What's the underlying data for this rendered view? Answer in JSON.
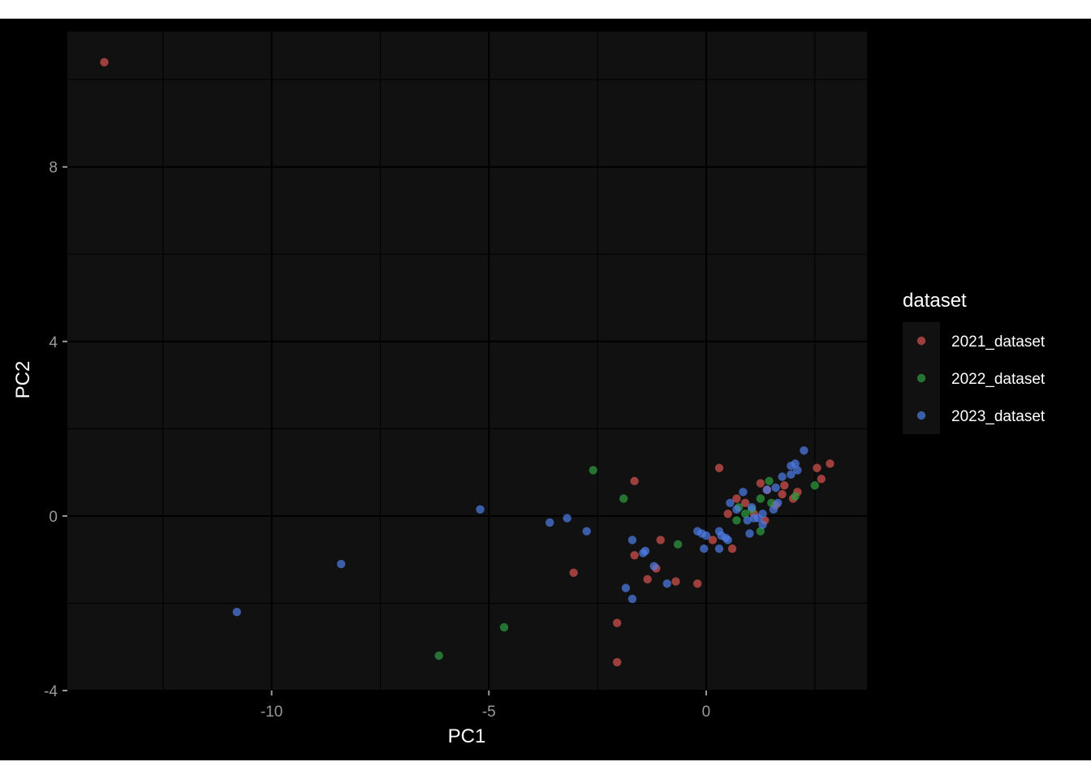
{
  "chart_data": {
    "type": "scatter",
    "xlabel": "PC1",
    "ylabel": "PC2",
    "xlim": [
      -14.7,
      3.7
    ],
    "ylim": [
      -4.0,
      11.1
    ],
    "xticks": [
      -10,
      -5,
      0
    ],
    "xtick_labels": [
      "-10",
      "-5",
      "0"
    ],
    "yticks": [
      -4,
      0,
      4,
      8
    ],
    "ytick_labels": [
      "-4",
      "0",
      "4",
      "8"
    ],
    "grid": true,
    "legend_position": "right",
    "legend_title": "dataset",
    "background": "#111111",
    "grid_color": "#000000",
    "series": [
      {
        "name": "2021_dataset",
        "color": "#d9534f",
        "points": [
          [
            -13.85,
            10.4
          ],
          [
            -1.65,
            0.8
          ],
          [
            0.3,
            1.1
          ],
          [
            2.55,
            1.1
          ],
          [
            2.85,
            1.2
          ],
          [
            2.65,
            0.85
          ],
          [
            1.25,
            0.75
          ],
          [
            1.4,
            0.6
          ],
          [
            1.8,
            0.7
          ],
          [
            1.75,
            0.5
          ],
          [
            2.0,
            0.4
          ],
          [
            0.9,
            0.3
          ],
          [
            0.7,
            0.4
          ],
          [
            0.5,
            0.05
          ],
          [
            0.15,
            -0.55
          ],
          [
            0.6,
            -0.75
          ],
          [
            -1.05,
            -0.55
          ],
          [
            -1.65,
            -0.9
          ],
          [
            -1.15,
            -1.2
          ],
          [
            -1.35,
            -1.45
          ],
          [
            -0.7,
            -1.5
          ],
          [
            -0.2,
            -1.55
          ],
          [
            -3.05,
            -1.3
          ],
          [
            -2.05,
            -2.45
          ],
          [
            -2.05,
            -3.35
          ],
          [
            1.6,
            0.25
          ],
          [
            2.1,
            0.55
          ],
          [
            1.1,
            0.05
          ],
          [
            1.35,
            -0.1
          ]
        ]
      },
      {
        "name": "2022_dataset",
        "color": "#2e9e3e",
        "points": [
          [
            -2.6,
            1.05
          ],
          [
            -1.9,
            0.4
          ],
          [
            -0.65,
            -0.65
          ],
          [
            -4.65,
            -2.55
          ],
          [
            -6.15,
            -3.2
          ],
          [
            1.45,
            0.8
          ],
          [
            1.25,
            0.4
          ],
          [
            2.5,
            0.7
          ],
          [
            2.05,
            0.45
          ],
          [
            0.75,
            0.2
          ],
          [
            1.05,
            0.15
          ],
          [
            0.7,
            -0.1
          ],
          [
            1.25,
            -0.35
          ],
          [
            1.5,
            0.3
          ],
          [
            0.9,
            0.05
          ]
        ]
      },
      {
        "name": "2023_dataset",
        "color": "#4f7ee8",
        "points": [
          [
            -10.8,
            -2.2
          ],
          [
            -8.4,
            -1.1
          ],
          [
            -5.2,
            0.15
          ],
          [
            -3.6,
            -0.15
          ],
          [
            -3.2,
            -0.05
          ],
          [
            -2.75,
            -0.35
          ],
          [
            -1.7,
            -0.55
          ],
          [
            -1.4,
            -0.8
          ],
          [
            -1.45,
            -0.85
          ],
          [
            -1.2,
            -1.15
          ],
          [
            -0.9,
            -1.55
          ],
          [
            -1.85,
            -1.65
          ],
          [
            -1.7,
            -1.9
          ],
          [
            -0.2,
            -0.35
          ],
          [
            -0.1,
            -0.4
          ],
          [
            0.0,
            -0.45
          ],
          [
            0.3,
            -0.35
          ],
          [
            0.35,
            -0.45
          ],
          [
            0.45,
            -0.5
          ],
          [
            0.5,
            -0.55
          ],
          [
            -0.05,
            -0.75
          ],
          [
            0.3,
            -0.75
          ],
          [
            1.0,
            -0.4
          ],
          [
            1.3,
            -0.2
          ],
          [
            0.95,
            -0.1
          ],
          [
            1.1,
            -0.05
          ],
          [
            0.55,
            0.3
          ],
          [
            0.85,
            0.55
          ],
          [
            1.4,
            0.6
          ],
          [
            1.6,
            0.65
          ],
          [
            1.75,
            0.9
          ],
          [
            1.95,
            1.15
          ],
          [
            2.05,
            1.2
          ],
          [
            2.25,
            1.5
          ],
          [
            2.1,
            1.05
          ],
          [
            1.95,
            0.95
          ],
          [
            1.55,
            0.15
          ],
          [
            1.65,
            0.3
          ],
          [
            0.7,
            0.15
          ],
          [
            1.05,
            0.2
          ],
          [
            1.2,
            -0.05
          ],
          [
            1.3,
            0.05
          ]
        ]
      }
    ]
  }
}
